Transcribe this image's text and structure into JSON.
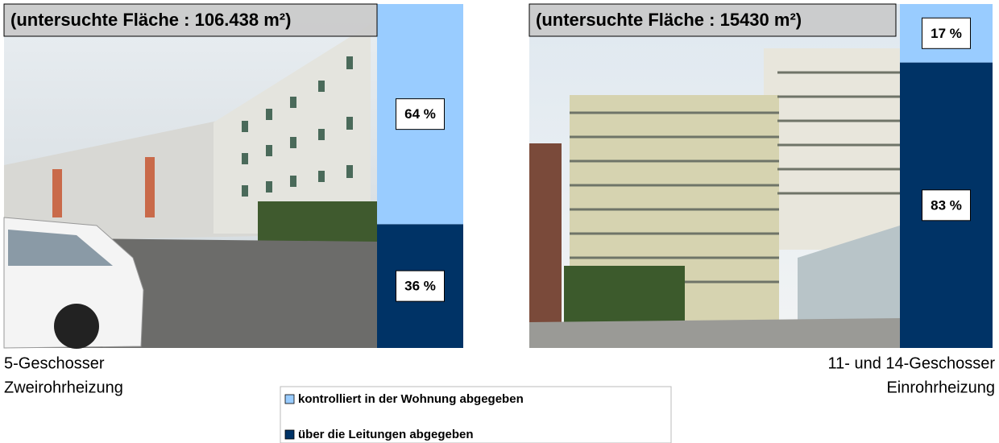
{
  "chart_data": [
    {
      "type": "stacked_bar",
      "title": "(untersuchte Fläche : 106.438 m²)",
      "caption": [
        "5-Geschosser",
        "Zweirohrheizung"
      ],
      "ylim": [
        0,
        100
      ],
      "series": [
        {
          "name": "kontrolliert in der Wohnung abgegeben",
          "color": "#99ccff",
          "values": [
            64
          ],
          "value_labels": [
            "64 %"
          ]
        },
        {
          "name": "über die Leitungen abgegeben",
          "color": "#003366",
          "values": [
            36
          ],
          "value_labels": [
            "36 %"
          ]
        }
      ]
    },
    {
      "type": "stacked_bar",
      "title": "(untersuchte Fläche : 15430 m²)",
      "caption": [
        "11- und 14-Geschosser",
        "Einrohrheizung"
      ],
      "ylim": [
        0,
        100
      ],
      "series": [
        {
          "color": "#99ccff",
          "values": [
            17
          ],
          "value_labels": [
            "17 %"
          ]
        },
        {
          "color": "#003366",
          "values": [
            83
          ],
          "value_labels": [
            "83 %"
          ]
        }
      ]
    }
  ]
}
